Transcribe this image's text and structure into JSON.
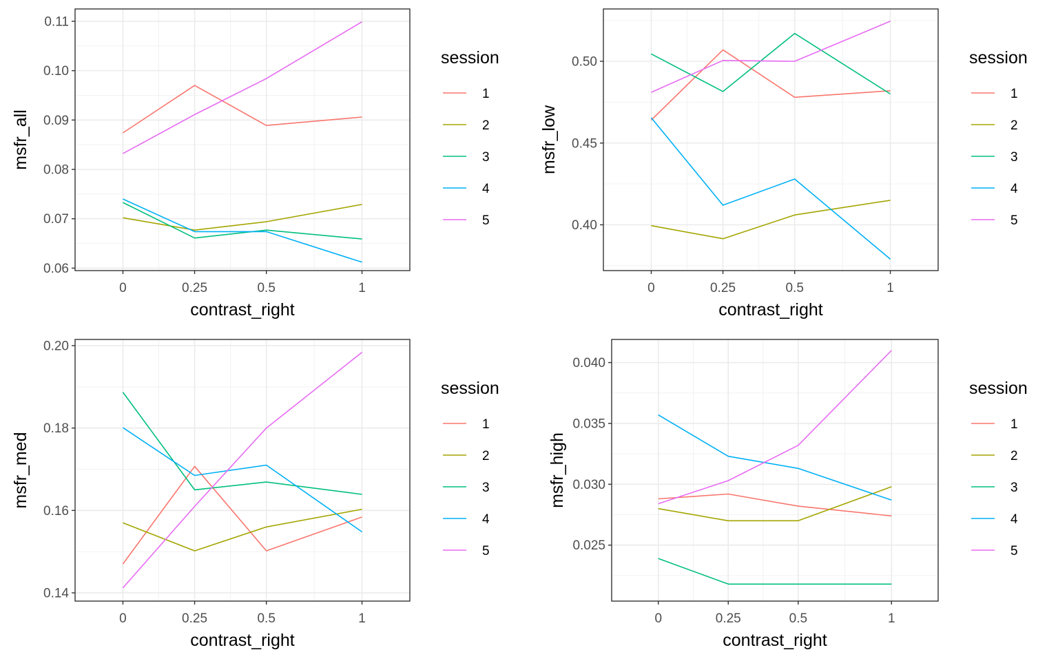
{
  "colors": {
    "series": [
      "#F8766D",
      "#A3A500",
      "#00BF7D",
      "#00B0F6",
      "#E76BF3"
    ],
    "grid_major": "#EBEBEB",
    "grid_minor": "#F2F2F2",
    "panel_border": "#333333"
  },
  "chart_data": [
    {
      "type": "line",
      "xlabel": "contrast_right",
      "ylabel": "msfr_all",
      "categories": [
        "0",
        "0.25",
        "0.5",
        "1"
      ],
      "ylim": [
        0.0595,
        0.1125
      ],
      "yticks": [
        0.06,
        0.07,
        0.08,
        0.09,
        0.1,
        0.11
      ],
      "ytick_labels": [
        "0.06",
        "0.07",
        "0.08",
        "0.09",
        "0.10",
        "0.11"
      ],
      "legend": {
        "title": "session",
        "position": "right"
      },
      "grid": true,
      "series": [
        {
          "name": "1",
          "values": [
            0.0874,
            0.097,
            0.0889,
            0.0906
          ]
        },
        {
          "name": "2",
          "values": [
            0.0702,
            0.0677,
            0.0694,
            0.0729
          ]
        },
        {
          "name": "3",
          "values": [
            0.0733,
            0.0661,
            0.0677,
            0.0659
          ]
        },
        {
          "name": "4",
          "values": [
            0.074,
            0.0674,
            0.0674,
            0.0612
          ]
        },
        {
          "name": "5",
          "values": [
            0.0832,
            0.0911,
            0.0984,
            0.1099
          ]
        }
      ]
    },
    {
      "type": "line",
      "xlabel": "contrast_right",
      "ylabel": "msfr_low",
      "categories": [
        "0",
        "0.25",
        "0.5",
        "1"
      ],
      "ylim": [
        0.372,
        0.532
      ],
      "yticks": [
        0.4,
        0.45,
        0.5
      ],
      "ytick_labels": [
        "0.40",
        "0.45",
        "0.50"
      ],
      "legend": {
        "title": "session",
        "position": "right"
      },
      "grid": true,
      "series": [
        {
          "name": "1",
          "values": [
            0.464,
            0.507,
            0.478,
            0.482
          ]
        },
        {
          "name": "2",
          "values": [
            0.3995,
            0.3915,
            0.406,
            0.415
          ]
        },
        {
          "name": "3",
          "values": [
            0.5045,
            0.4815,
            0.517,
            0.48
          ]
        },
        {
          "name": "4",
          "values": [
            0.4655,
            0.412,
            0.428,
            0.379
          ]
        },
        {
          "name": "5",
          "values": [
            0.481,
            0.5005,
            0.5,
            0.5245
          ]
        }
      ]
    },
    {
      "type": "line",
      "xlabel": "contrast_right",
      "ylabel": "msfr_med",
      "categories": [
        "0",
        "0.25",
        "0.5",
        "1"
      ],
      "ylim": [
        0.138,
        0.2015
      ],
      "yticks": [
        0.14,
        0.16,
        0.18,
        0.2
      ],
      "ytick_labels": [
        "0.14",
        "0.16",
        "0.18",
        "0.20"
      ],
      "legend": {
        "title": "session",
        "position": "right"
      },
      "grid": true,
      "series": [
        {
          "name": "1",
          "values": [
            0.147,
            0.1707,
            0.1502,
            0.1584
          ]
        },
        {
          "name": "2",
          "values": [
            0.157,
            0.1502,
            0.156,
            0.1603
          ]
        },
        {
          "name": "3",
          "values": [
            0.1887,
            0.165,
            0.1669,
            0.1639
          ]
        },
        {
          "name": "4",
          "values": [
            0.1801,
            0.1685,
            0.171,
            0.1548
          ]
        },
        {
          "name": "5",
          "values": [
            0.1412,
            0.161,
            0.18,
            0.1984
          ]
        }
      ]
    },
    {
      "type": "line",
      "xlabel": "contrast_right",
      "ylabel": "msfr_high",
      "categories": [
        "0",
        "0.25",
        "0.5",
        "1"
      ],
      "ylim": [
        0.0204,
        0.0419
      ],
      "yticks": [
        0.025,
        0.03,
        0.035,
        0.04
      ],
      "ytick_labels": [
        "0.025",
        "0.030",
        "0.035",
        "0.040"
      ],
      "legend": {
        "title": "session",
        "position": "right"
      },
      "grid": true,
      "series": [
        {
          "name": "1",
          "values": [
            0.0288,
            0.0292,
            0.0282,
            0.0274
          ]
        },
        {
          "name": "2",
          "values": [
            0.028,
            0.027,
            0.027,
            0.0298
          ]
        },
        {
          "name": "3",
          "values": [
            0.0239,
            0.0218,
            0.0218,
            0.0218
          ]
        },
        {
          "name": "4",
          "values": [
            0.0357,
            0.0323,
            0.0313,
            0.0287
          ]
        },
        {
          "name": "5",
          "values": [
            0.0284,
            0.0303,
            0.0332,
            0.041
          ]
        }
      ]
    }
  ]
}
